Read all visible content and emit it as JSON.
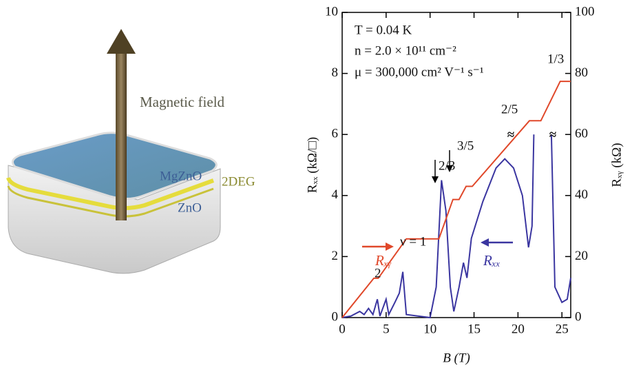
{
  "illustration": {
    "field_label": "Magnetic field",
    "top_layer": "MgZnO",
    "interface": "2DEG",
    "substrate": "ZnO"
  },
  "chart_data": {
    "type": "line",
    "xlabel": "B (T)",
    "ylabel": "Rₓₓ (kΩ/□)",
    "y2label": "Rₓᵧ (kΩ)",
    "xlim": [
      0,
      26
    ],
    "xticks": [
      0,
      5,
      10,
      15,
      20,
      25
    ],
    "ylim": [
      0,
      10
    ],
    "yticks": [
      0,
      2,
      4,
      6,
      8,
      10
    ],
    "y2lim": [
      0,
      100
    ],
    "y2ticks": [
      0,
      20,
      40,
      60,
      80,
      100
    ],
    "annotations": [
      "T = 0.04 K",
      "n = 2.0 × 10¹¹ cm⁻²",
      "μ = 300,000 cm² V⁻¹ s⁻¹"
    ],
    "filling_labels": [
      "1/3",
      "2/5",
      "3/5",
      "2/3",
      "ν = 1",
      "2"
    ],
    "break_symbol": "≈",
    "series": [
      {
        "name": "Rₓₓ",
        "color": "#3a35a0",
        "axis": "y",
        "x": [
          0,
          1,
          2,
          2.5,
          3,
          3.5,
          4,
          4.3,
          5,
          5.3,
          6,
          6.5,
          6.9,
          7.3,
          10,
          10.7,
          11.3,
          11.8,
          12.3,
          12.7,
          13.3,
          13.8,
          14.2,
          14.7,
          16,
          17.5,
          18.5,
          19.5,
          20.5,
          21.2,
          21.6,
          21.8,
          23,
          23.8,
          24.2,
          25,
          25.6,
          26
        ],
        "values": [
          0,
          0.05,
          0.2,
          0.1,
          0.3,
          0.1,
          0.6,
          0.05,
          0.6,
          0.1,
          0.5,
          0.8,
          1.5,
          0.1,
          0,
          1,
          4.5,
          3.5,
          1,
          0.2,
          1,
          1.8,
          1.3,
          2.6,
          3.8,
          4.9,
          5.2,
          4.9,
          4,
          2.3,
          3,
          6,
          null,
          6,
          1,
          0.5,
          0.6,
          1.3
        ]
      },
      {
        "name": "Rₓᵧ",
        "color": "#e0482a",
        "axis": "y2",
        "x": [
          0,
          3.6,
          4.1,
          7.3,
          11,
          12.6,
          13.3,
          14.1,
          14.8,
          21.3,
          22.6,
          24.8,
          26
        ],
        "values": [
          0,
          12.9,
          12.9,
          25.8,
          25.8,
          38.7,
          38.7,
          43,
          43,
          64.5,
          64.5,
          77.4,
          77.4
        ]
      }
    ]
  }
}
